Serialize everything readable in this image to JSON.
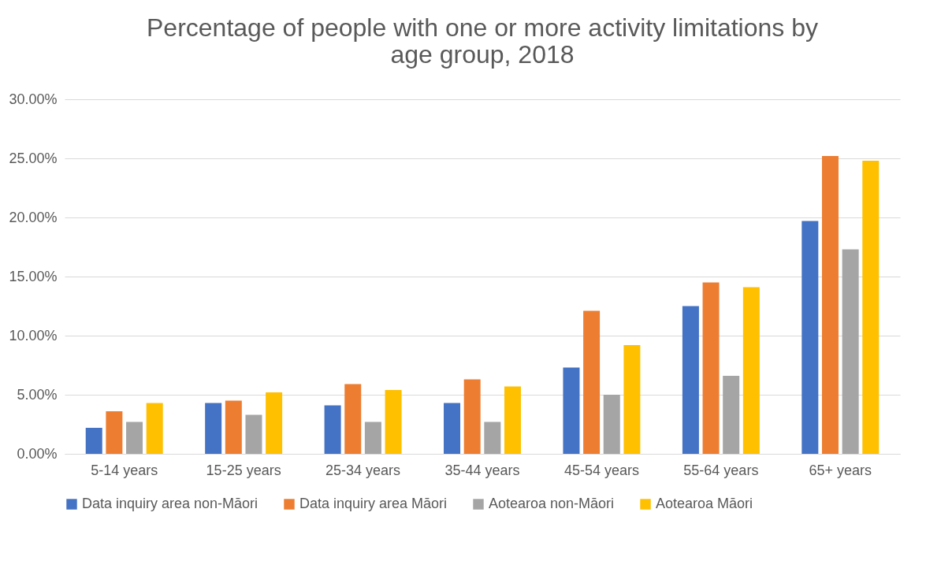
{
  "chart_data": {
    "type": "bar",
    "title": "Percentage of people with one or more activity limitations by age group, 2018",
    "categories": [
      "5-14 years",
      "15-25 years",
      "25-34 years",
      "35-44 years",
      "45-54 years",
      "55-64 years",
      "65+ years"
    ],
    "series": [
      {
        "name": "Data inquiry area non-Māori",
        "color": "#4472c4",
        "values": [
          2.2,
          4.3,
          4.1,
          4.3,
          7.3,
          12.5,
          19.7
        ]
      },
      {
        "name": "Data inquiry area Māori",
        "color": "#ed7d31",
        "values": [
          3.6,
          4.5,
          5.9,
          6.3,
          12.1,
          14.5,
          25.2
        ]
      },
      {
        "name": "Aotearoa non-Māori",
        "color": "#a5a5a5",
        "values": [
          2.7,
          3.3,
          2.7,
          2.7,
          5.0,
          6.6,
          17.3
        ]
      },
      {
        "name": "Aotearoa Māori",
        "color": "#ffc000",
        "values": [
          4.3,
          5.2,
          5.4,
          5.7,
          9.2,
          14.1,
          24.8
        ]
      }
    ],
    "ylim": [
      0,
      30
    ],
    "yticks": [
      {
        "value": 0,
        "label": "0.00%"
      },
      {
        "value": 5,
        "label": "5.00%"
      },
      {
        "value": 10,
        "label": "10.00%"
      },
      {
        "value": 15,
        "label": "15.00%"
      },
      {
        "value": 20,
        "label": "20.00%"
      },
      {
        "value": 25,
        "label": "25.00%"
      },
      {
        "value": 30,
        "label": "30.00%"
      }
    ],
    "grid": "y",
    "legend": "bottom"
  }
}
